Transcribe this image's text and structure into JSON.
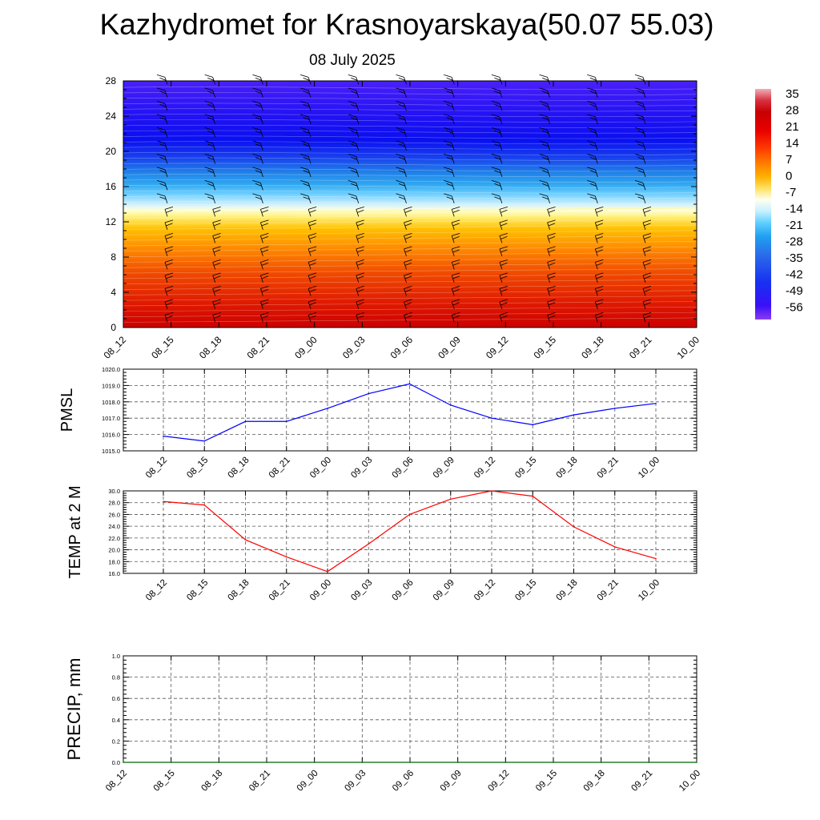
{
  "header": {
    "title": "Kazhydromet for Krasnoyarskaya(50.07 55.03)",
    "subtitle": "08 July 2025"
  },
  "colors": {
    "pmsl_line": "#0000ff",
    "temp_line": "#ff0000",
    "precip_line": "#006400",
    "wind_barbs": "#000000",
    "grid": "#555555"
  },
  "chart_data": [
    {
      "type": "heatmap",
      "name": "vertical-temperature-cross-section",
      "x_ticks": [
        "08_12",
        "08_15",
        "08_18",
        "08_21",
        "09_00",
        "09_03",
        "09_06",
        "09_09",
        "09_12",
        "09_15",
        "09_18",
        "09_21",
        "10_00"
      ],
      "y_ticks": [
        "0",
        "4",
        "8",
        "12",
        "16",
        "20",
        "24",
        "28"
      ],
      "ylim": [
        0,
        28
      ],
      "colorbar_labels": [
        "35",
        "28",
        "21",
        "14",
        "7",
        "0",
        "-7",
        "-14",
        "-21",
        "-28",
        "-35",
        "-42",
        "-49",
        "-56"
      ],
      "colorbar_range": [
        -60,
        38
      ],
      "freezing_level_approx": [
        13.0,
        13.0,
        13.1,
        13.1,
        13.2,
        13.2,
        13.3,
        13.3,
        13.4,
        13.4,
        13.5,
        13.5,
        13.6
      ],
      "coldest_level_approx": 21,
      "wind_barbs": "shown at each time step, every 1-2 levels"
    },
    {
      "type": "line",
      "name": "pmsl",
      "ylabel": "PMSL",
      "ylim": [
        1015.0,
        1020.0
      ],
      "y_ticks": [
        "1015.0",
        "1016.0",
        "1017.0",
        "1018.0",
        "1019.0",
        "1020.0"
      ],
      "x": [
        "08_12",
        "08_15",
        "08_18",
        "08_21",
        "09_00",
        "09_03",
        "09_06",
        "09_09",
        "09_12",
        "09_15",
        "09_18",
        "09_21",
        "10_00"
      ],
      "values": [
        1015.9,
        1015.6,
        1016.8,
        1016.8,
        1017.6,
        1018.5,
        1019.1,
        1017.8,
        1017.0,
        1016.6,
        1017.2,
        1017.6,
        1017.9
      ]
    },
    {
      "type": "line",
      "name": "temp-2m",
      "ylabel": "TEMP at 2 M",
      "ylim": [
        16.0,
        30.0
      ],
      "y_ticks": [
        "16.0",
        "18.0",
        "20.0",
        "22.0",
        "24.0",
        "26.0",
        "28.0",
        "30.0"
      ],
      "x": [
        "08_12",
        "08_15",
        "08_18",
        "08_21",
        "09_00",
        "09_03",
        "09_06",
        "09_09",
        "09_12",
        "09_15",
        "09_18",
        "09_21",
        "10_00"
      ],
      "values": [
        28.2,
        27.6,
        21.7,
        18.8,
        16.3,
        21.0,
        26.0,
        28.6,
        30.0,
        29.1,
        23.9,
        20.5,
        18.5
      ]
    },
    {
      "type": "line",
      "name": "precip",
      "ylabel": "PRECIP, mm",
      "ylim": [
        0.0,
        1.0
      ],
      "y_ticks": [
        "0.0",
        "0.2",
        "0.4",
        "0.6",
        "0.8",
        "1.0"
      ],
      "x": [
        "08_12",
        "08_15",
        "08_18",
        "08_21",
        "09_00",
        "09_03",
        "09_06",
        "09_09",
        "09_12",
        "09_15",
        "09_18",
        "09_21",
        "10_00"
      ],
      "values": [
        0,
        0,
        0,
        0,
        0,
        0,
        0,
        0,
        0,
        0,
        0,
        0,
        0
      ]
    }
  ]
}
